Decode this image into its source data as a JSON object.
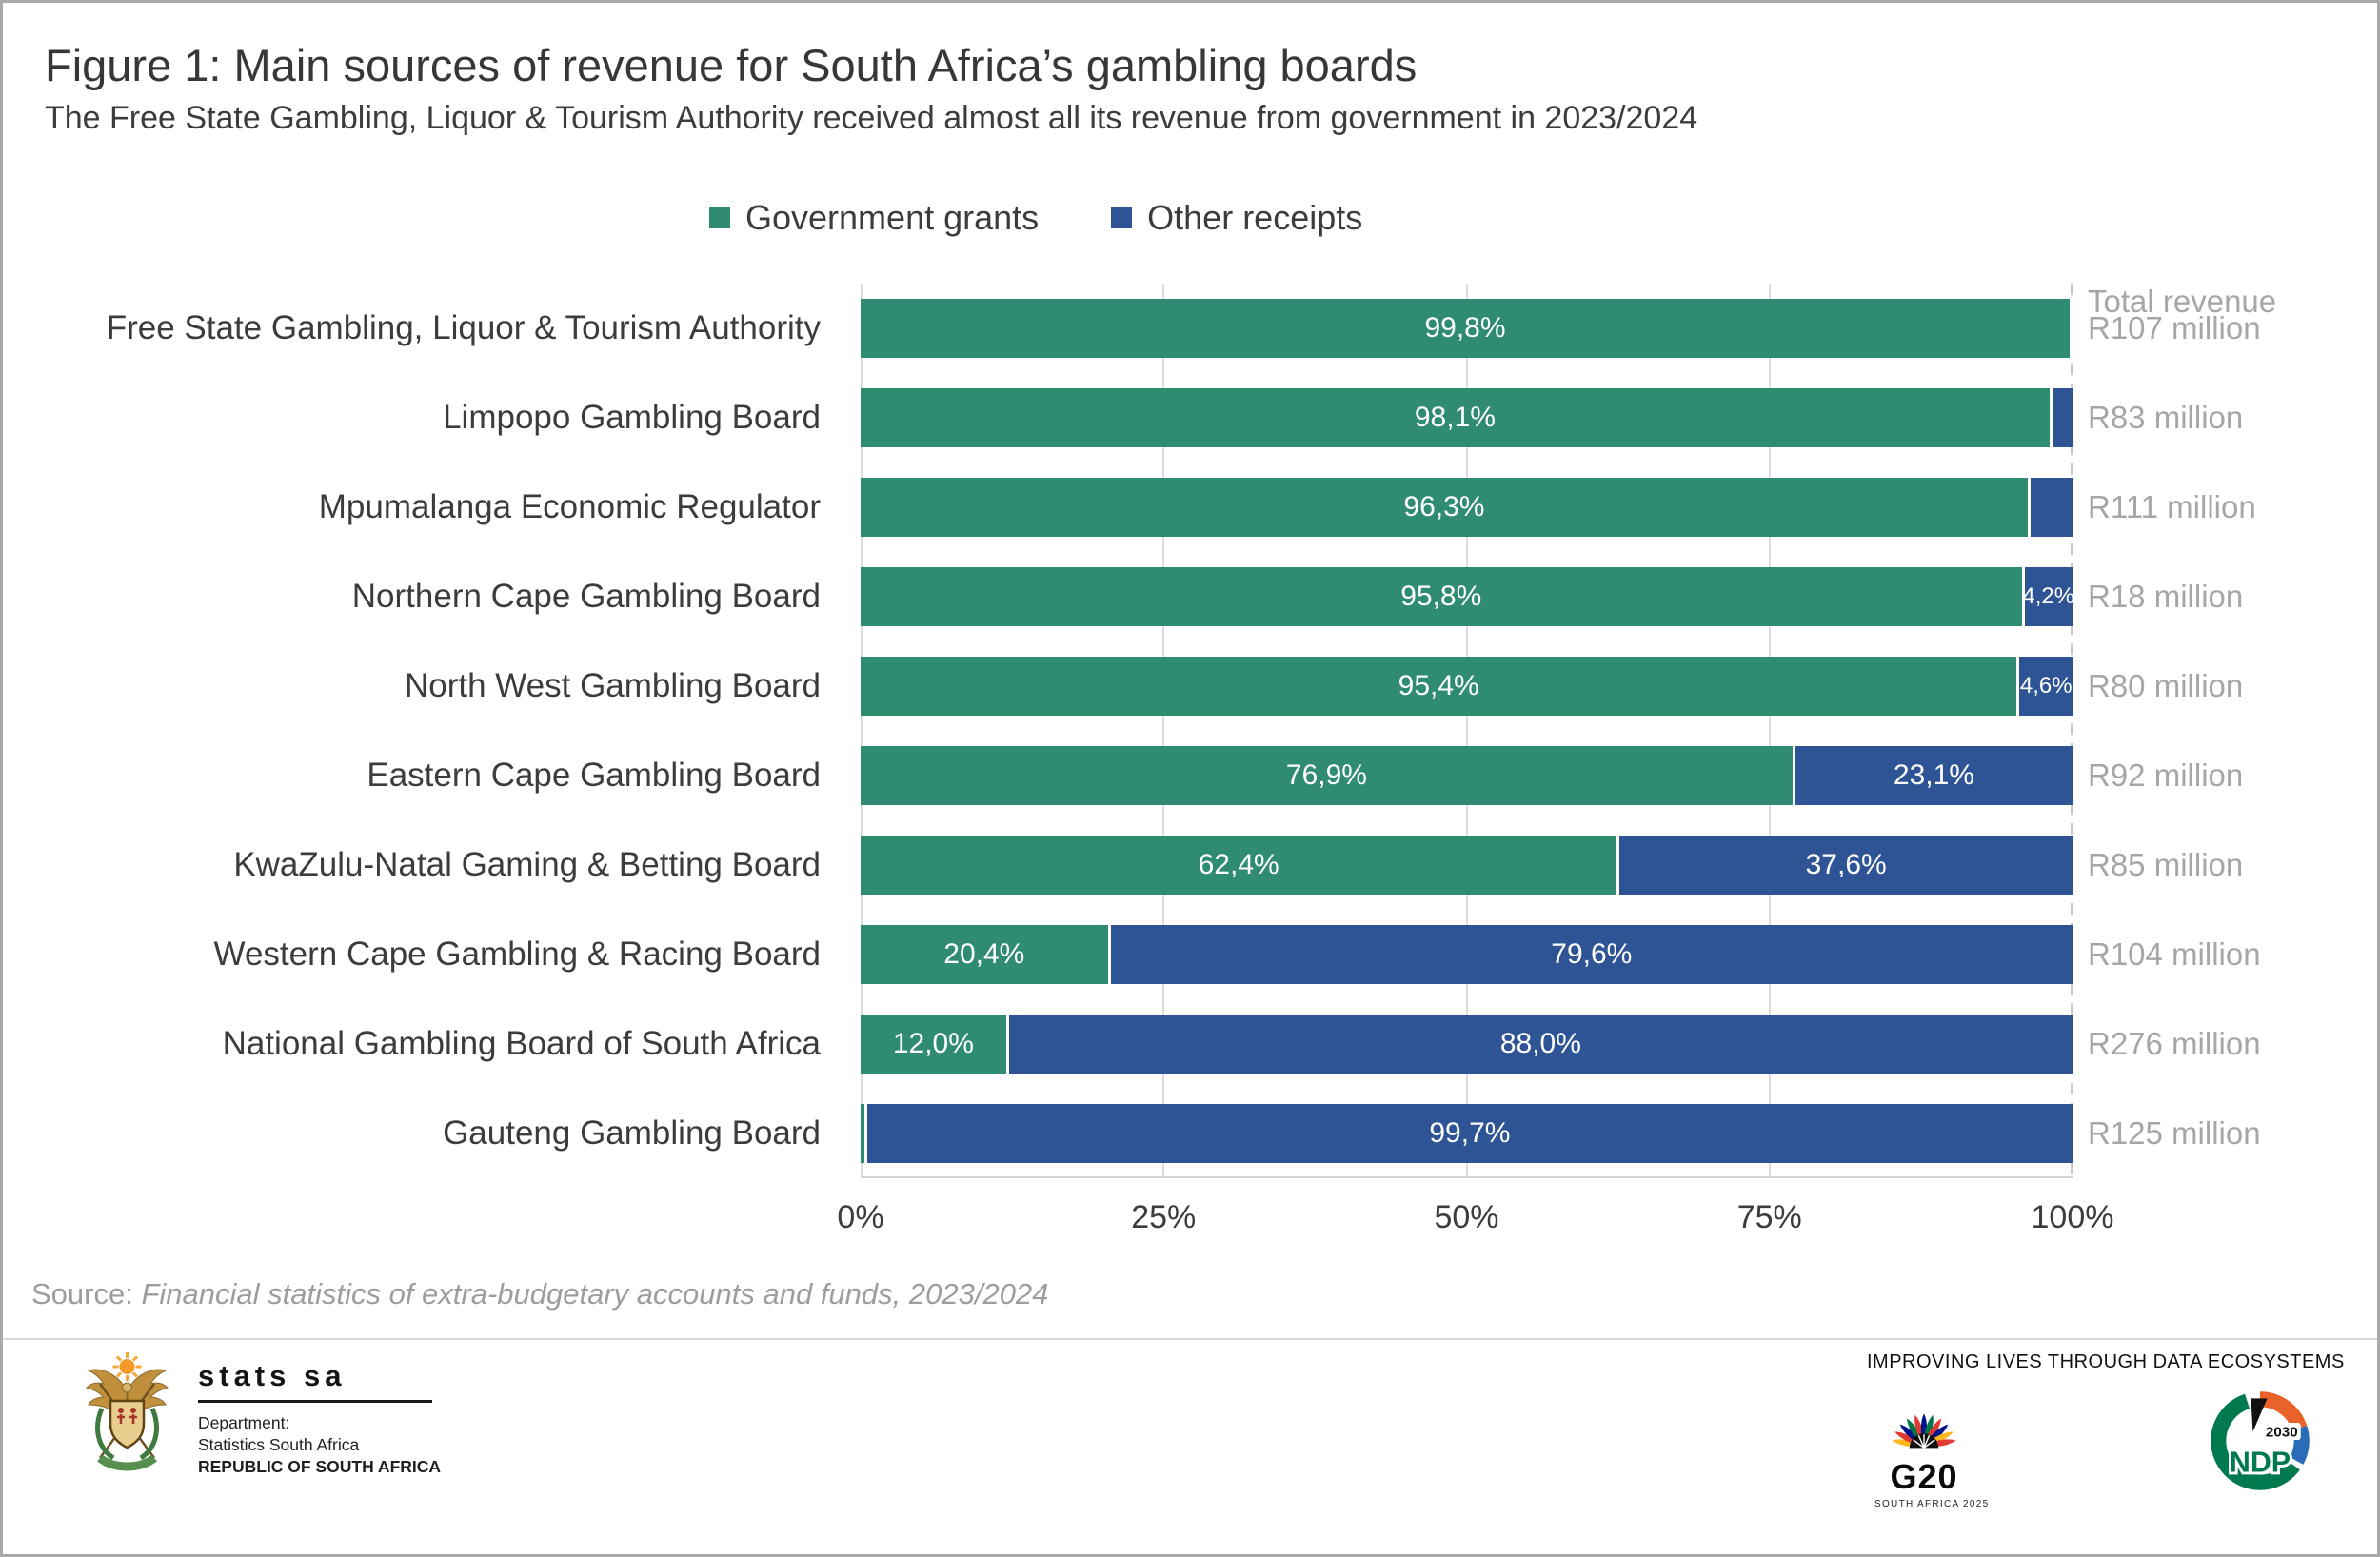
{
  "chart_data": {
    "type": "bar",
    "orientation": "horizontal",
    "stacked": true,
    "title": "Figure 1: Main sources of revenue for South Africa’s gambling boards",
    "subtitle": "The Free State Gambling, Liquor & Tourism Authority received almost all its revenue from government in 2023/2024",
    "legend": [
      {
        "name": "Government grants",
        "color": "#2F8C72"
      },
      {
        "name": "Other receipts",
        "color": "#2F5496"
      }
    ],
    "legend_position": "top",
    "grid": "vertical-light",
    "x_axis": {
      "ticks": [
        "0%",
        "25%",
        "50%",
        "75%",
        "100%"
      ],
      "range": [
        0,
        100
      ]
    },
    "total_revenue_header": "Total revenue",
    "rows": [
      {
        "label": "Free State Gambling, Liquor & Tourism Authority",
        "government_grants_pct": 99.8,
        "other_receipts_pct": 0.2,
        "grants_label": "99,8%",
        "other_label": "",
        "total_revenue": "R107 million"
      },
      {
        "label": "Limpopo Gambling Board",
        "government_grants_pct": 98.1,
        "other_receipts_pct": 1.9,
        "grants_label": "98,1%",
        "other_label": "",
        "total_revenue": "R83 million"
      },
      {
        "label": "Mpumalanga Economic Regulator",
        "government_grants_pct": 96.3,
        "other_receipts_pct": 3.7,
        "grants_label": "96,3%",
        "other_label": "",
        "total_revenue": "R111 million"
      },
      {
        "label": "Northern Cape Gambling Board",
        "government_grants_pct": 95.8,
        "other_receipts_pct": 4.2,
        "grants_label": "95,8%",
        "other_label": "4,2%",
        "total_revenue": "R18 million"
      },
      {
        "label": "North West Gambling Board",
        "government_grants_pct": 95.4,
        "other_receipts_pct": 4.6,
        "grants_label": "95,4%",
        "other_label": "4,6%",
        "total_revenue": "R80 million"
      },
      {
        "label": "Eastern Cape Gambling Board",
        "government_grants_pct": 76.9,
        "other_receipts_pct": 23.1,
        "grants_label": "76,9%",
        "other_label": "23,1%",
        "total_revenue": "R92 million"
      },
      {
        "label": "KwaZulu-Natal Gaming & Betting Board",
        "government_grants_pct": 62.4,
        "other_receipts_pct": 37.6,
        "grants_label": "62,4%",
        "other_label": "37,6%",
        "total_revenue": "R85 million"
      },
      {
        "label": "Western Cape Gambling & Racing Board",
        "government_grants_pct": 20.4,
        "other_receipts_pct": 79.6,
        "grants_label": "20,4%",
        "other_label": "79,6%",
        "total_revenue": "R104 million"
      },
      {
        "label": "National Gambling Board of South Africa",
        "government_grants_pct": 12.0,
        "other_receipts_pct": 88.0,
        "grants_label": "12,0%",
        "other_label": "88,0%",
        "total_revenue": "R276 million"
      },
      {
        "label": "Gauteng Gambling Board",
        "government_grants_pct": 0.3,
        "other_receipts_pct": 99.7,
        "grants_label": "",
        "other_label": "99,7%",
        "total_revenue": "R125 million"
      }
    ]
  },
  "source": {
    "prefix": "Source: ",
    "text": "Financial statistics of extra-budgetary accounts and funds, 2023/2024"
  },
  "footer": {
    "stats_sa": {
      "wordmark": "stats sa",
      "dept_line1": "Department:",
      "dept_line2": "Statistics South Africa",
      "dept_line3": "REPUBLIC OF SOUTH AFRICA"
    },
    "tagline": "IMPROVING LIVES THROUGH DATA ECOSYSTEMS",
    "g20": {
      "label": "G20",
      "sublabel": "SOUTH AFRICA 2025"
    },
    "ndp": {
      "label": "NDP",
      "year": "2030"
    }
  }
}
